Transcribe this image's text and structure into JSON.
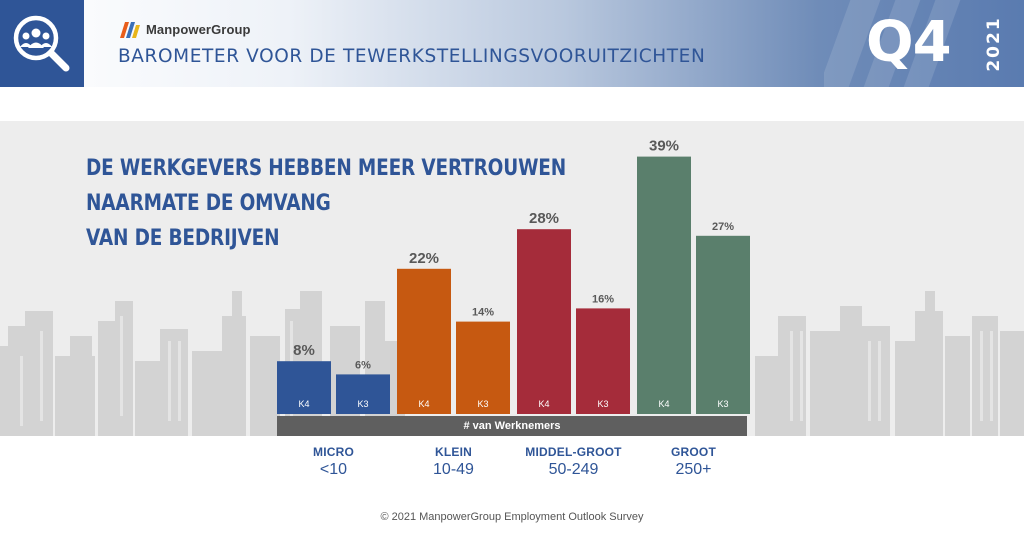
{
  "header": {
    "logo_text": "ManpowerGroup",
    "title": "BAROMETER VOOR DE TEWERKSTELLINGSVOORUITZICHTEN",
    "quarter": "Q4",
    "year": "2021",
    "colors": {
      "icon_box": "#2f5597",
      "title": "#2f5597"
    }
  },
  "headline": [
    "DE WERKGEVERS HEBBEN MEER VERTROUWEN",
    "NAARMATE DE OMVANG",
    "VAN DE BEDRIJVEN"
  ],
  "chart_data": {
    "type": "bar",
    "xlabel": "# van Werknemers",
    "value_format": "percent",
    "ylim": [
      0,
      40
    ],
    "groups": [
      {
        "name": "MICRO",
        "range": "<10",
        "color": "#2f5597",
        "bars": [
          {
            "label": "K4",
            "value": 8
          },
          {
            "label": "K3",
            "value": 6
          }
        ]
      },
      {
        "name": "KLEIN",
        "range": "10-49",
        "color": "#c65911",
        "bars": [
          {
            "label": "K4",
            "value": 22
          },
          {
            "label": "K3",
            "value": 14
          }
        ]
      },
      {
        "name": "MIDDEL-GROOT",
        "range": "50-249",
        "color": "#a52c3a",
        "bars": [
          {
            "label": "K4",
            "value": 28
          },
          {
            "label": "K3",
            "value": 16
          }
        ]
      },
      {
        "name": "GROOT",
        "range": "250+",
        "color": "#5a7f6c",
        "bars": [
          {
            "label": "K4",
            "value": 39
          },
          {
            "label": "K3",
            "value": 27
          }
        ]
      }
    ]
  },
  "footer": "© 2021 ManpowerGroup Employment Outlook Survey"
}
